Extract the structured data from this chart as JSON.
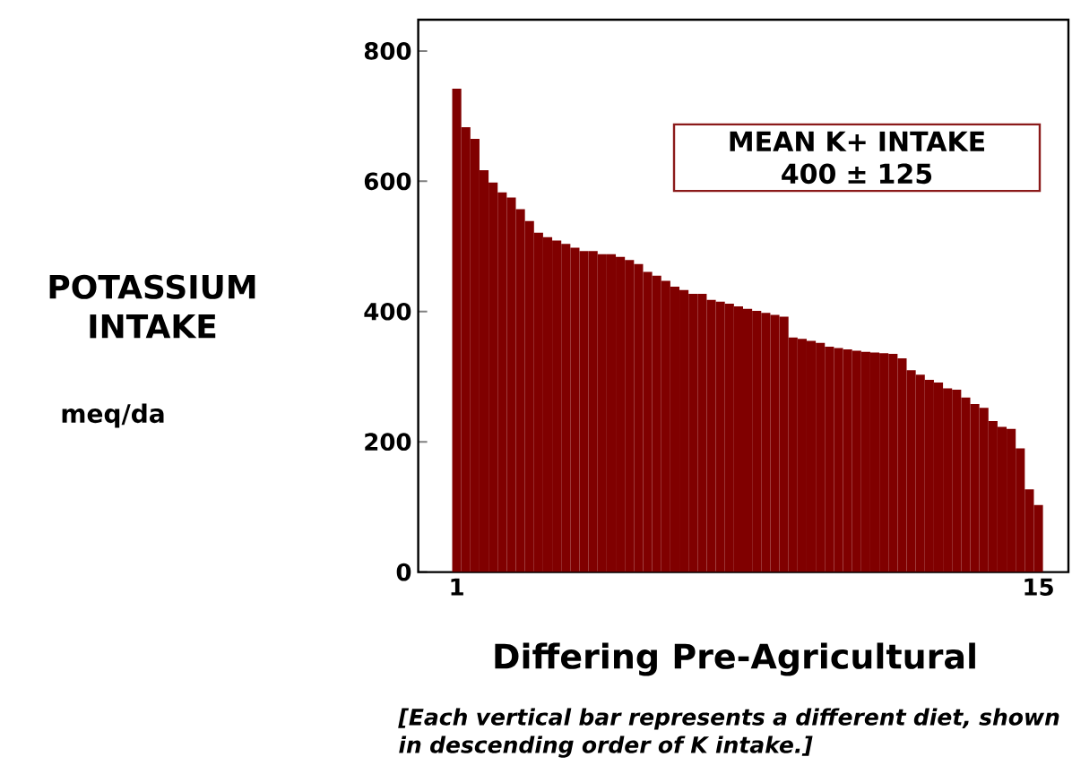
{
  "chart_data": {
    "type": "bar",
    "ylabel": "POTASSIUM INTAKE",
    "xlabel": "Differing Pre-Agricultural",
    "annotations": [
      "MEAN K+ INTAKE 400 ± 125",
      "meq/da",
      "*[Each vertical bar represents a different diet, shown in descending order of K intake.]*"
    ],
    "categories": [
      "1",
      null,
      null,
      null,
      null,
      null,
      null,
      null,
      null,
      null,
      null,
      null,
      null,
      null,
      null,
      null,
      null,
      null,
      null,
      null,
      null,
      null,
      null,
      null,
      null,
      null,
      null,
      null,
      null,
      null,
      null,
      null,
      null,
      null,
      null,
      null,
      null,
      null,
      null,
      null,
      null,
      null,
      null,
      null,
      null,
      null,
      null,
      null,
      null,
      null,
      null,
      null,
      null,
      null,
      null,
      null,
      null,
      null,
      null,
      null,
      null,
      null,
      null,
      null,
      "15"
    ],
    "values": [
      742,
      683,
      665,
      617,
      598,
      583,
      575,
      557,
      539,
      521,
      514,
      509,
      504,
      498,
      493,
      493,
      488,
      488,
      484,
      479,
      473,
      461,
      455,
      447,
      438,
      433,
      427,
      427,
      418,
      415,
      412,
      408,
      404,
      401,
      398,
      395,
      392,
      360,
      358,
      355,
      352,
      346,
      344,
      342,
      340,
      338,
      337,
      336,
      335,
      328,
      310,
      303,
      295,
      291,
      282,
      280,
      268,
      258,
      252,
      232,
      223,
      220,
      190,
      127,
      103
    ],
    "color": "#800000",
    "ylim": [
      0,
      848
    ],
    "yticks": [
      0,
      200,
      400,
      600,
      800
    ],
    "grid": false
  }
}
